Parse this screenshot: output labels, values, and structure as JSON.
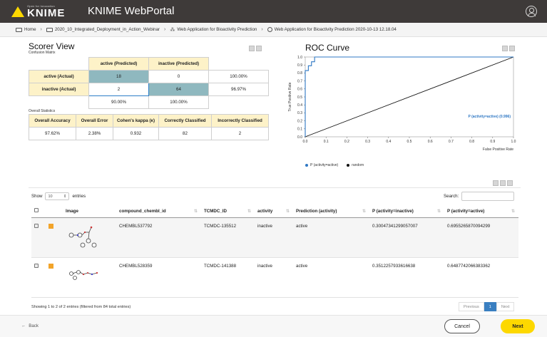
{
  "header": {
    "logo_tagline": "Open for Innovation",
    "logo_word": "KNIME",
    "title": "KNIME WebPortal"
  },
  "breadcrumb": {
    "items": [
      "Home",
      "2020_10_Integrated_Deployment_in_Action_Webinar",
      "Web Application for Bioactivity Prediction",
      "Web Application for Bioactivity Prediction 2020-10-13 12.18.04"
    ]
  },
  "scorer": {
    "title": "Scorer View",
    "subtitle": "Confusion Matrix",
    "col_headers": [
      "active (Predicted)",
      "inactive (Predicted)"
    ],
    "rows": [
      {
        "label": "active (Actual)",
        "values": [
          "18",
          "0"
        ],
        "pct": "100.00%"
      },
      {
        "label": "inactive (Actual)",
        "values": [
          "2",
          "64"
        ],
        "pct": "96.97%"
      }
    ],
    "col_pcts": [
      "90.00%",
      "100.00%"
    ],
    "overall_label": "Overall Statistics",
    "overall_headers": [
      "Overall Accuracy",
      "Overall Error",
      "Cohen's kappa (κ)",
      "Correctly Classified",
      "Incorrectly Classified"
    ],
    "overall_values": [
      "97.62%",
      "2.38%",
      "0.932",
      "82",
      "2"
    ]
  },
  "roc": {
    "title": "ROC Curve",
    "ylabel": "True Positive Rate",
    "xlabel": "False Positive Rate",
    "curve_label": "P (activity=active) (0.996)",
    "legend": [
      {
        "label": "P (activity=active)",
        "color": "#2f78c4"
      },
      {
        "label": "random",
        "color": "#111111"
      }
    ]
  },
  "chart_data": {
    "type": "line",
    "title": "ROC Curve",
    "xlabel": "False Positive Rate",
    "ylabel": "True Positive Rate",
    "xlim": [
      0,
      1
    ],
    "ylim": [
      0,
      1
    ],
    "x_ticks": [
      "0.0",
      "0.1",
      "0.2",
      "0.3",
      "0.4",
      "0.5",
      "0.6",
      "0.7",
      "0.8",
      "0.9",
      "1.0"
    ],
    "y_ticks": [
      "0.0",
      "0.1",
      "0.2",
      "0.3",
      "0.4",
      "0.5",
      "0.6",
      "0.7",
      "0.8",
      "0.9",
      "1.0"
    ],
    "series": [
      {
        "name": "P (activity=active)",
        "color": "#2f78c4",
        "x": [
          0,
          0,
          0.015,
          0.015,
          0.03,
          0.03,
          0.045,
          0.045,
          1.0
        ],
        "y": [
          0,
          0.83,
          0.83,
          0.89,
          0.89,
          0.94,
          0.94,
          1.0,
          1.0
        ]
      },
      {
        "name": "random",
        "color": "#111111",
        "x": [
          0,
          1
        ],
        "y": [
          0,
          1
        ]
      }
    ],
    "legend_position": "bottom-left",
    "grid": false
  },
  "table": {
    "show_label": "Show",
    "entries_value": "10",
    "entries_label": "entries",
    "search_label": "Search:",
    "columns": [
      "Image",
      "compound_chembl_id",
      "TCMDC_ID",
      "activity",
      "Prediction (activity)",
      "P (activity=inactive)",
      "P (activity=active)"
    ],
    "rows": [
      {
        "chembl": "CHEMBL537792",
        "tcmdc": "TCMDC-135512",
        "activity": "inactive",
        "prediction": "active",
        "p_inactive": "0.30047341299057007",
        "p_active": "0.6955265870094299"
      },
      {
        "chembl": "CHEMBL528359",
        "tcmdc": "TCMDC-141388",
        "activity": "inactive",
        "prediction": "active",
        "p_inactive": "0.3512257933616638",
        "p_active": "0.6487742066383362"
      }
    ],
    "info": "Showing 1 to 2 of 2 entries (filtered from 84 total entries)",
    "pager": {
      "previous": "Previous",
      "page": "1",
      "next": "Next"
    }
  },
  "footer": {
    "back": "Back",
    "cancel": "Cancel",
    "next": "Next"
  }
}
